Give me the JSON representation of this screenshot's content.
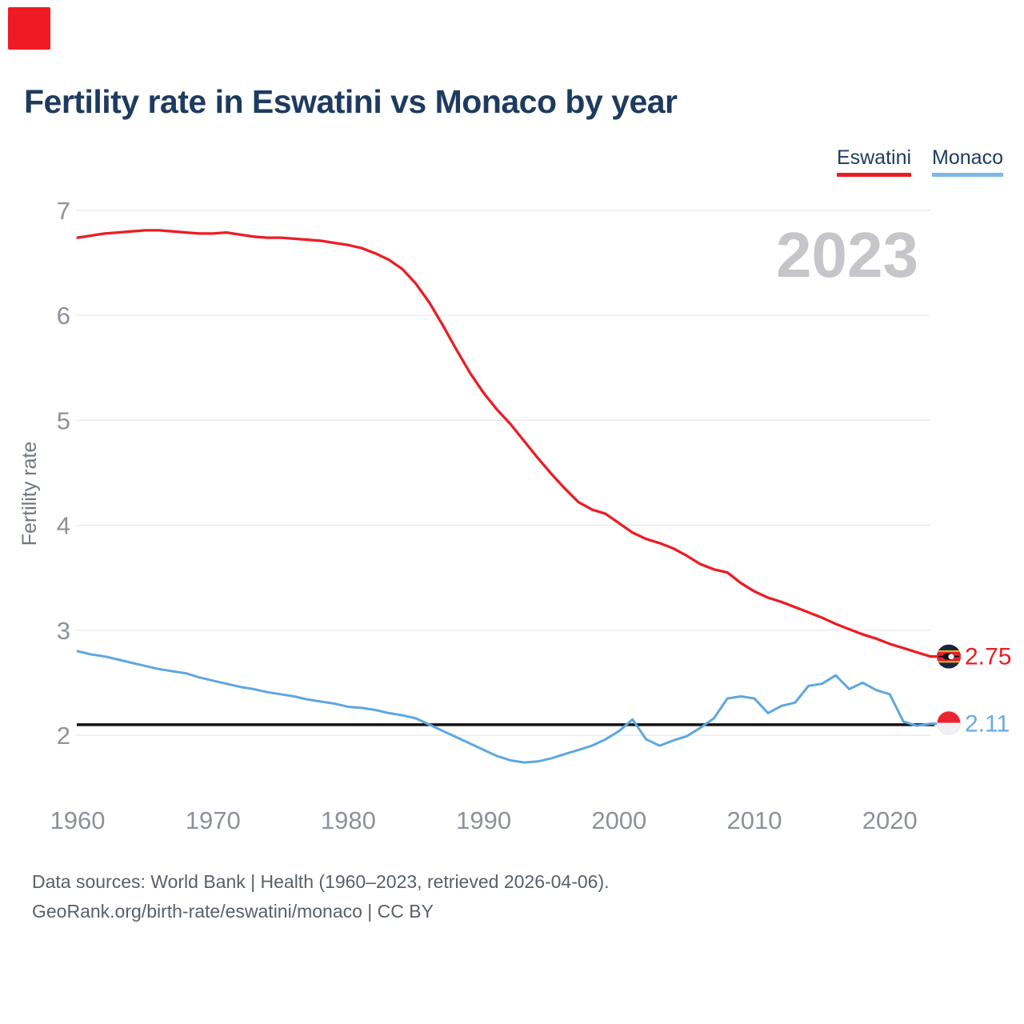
{
  "brand": {
    "logo_color": "#ee1b24"
  },
  "header": {
    "title": "Fertility rate in Eswatini vs Monaco by year"
  },
  "legend": {
    "items": [
      {
        "label": "Eswatini",
        "color": "#ed1c24"
      },
      {
        "label": "Monaco",
        "color": "#7cb9e8"
      }
    ]
  },
  "watermark": {
    "year": "2023"
  },
  "end_labels": {
    "eswatini": {
      "value": "2.75"
    },
    "monaco": {
      "value": "2.11"
    }
  },
  "footer": {
    "line1": "Data sources: World Bank | Health (1960–2023, retrieved 2026-04-06).",
    "line2": "GeoRank.org/birth-rate/eswatini/monaco | CC BY"
  },
  "chart_data": {
    "type": "line",
    "title": "Fertility rate in Eswatini vs Monaco by year",
    "xlabel": "",
    "ylabel": "Fertility rate",
    "xlim": [
      1960,
      2023
    ],
    "ylim": [
      1.6,
      7.1
    ],
    "grid": true,
    "legend_position": "top-right",
    "y_ticks": [
      7,
      6,
      5,
      4,
      3,
      2
    ],
    "x_ticks": [
      1960,
      1970,
      1980,
      1990,
      2000,
      2010,
      2020
    ],
    "reference_line": {
      "value": 2.1,
      "color": "#111111"
    },
    "colors": {
      "axis_text": "#8c919a",
      "axis_title": "#70777f",
      "grid": "#e8e8ea",
      "watermark": "#c6c6ca"
    },
    "years": [
      1960,
      1961,
      1962,
      1963,
      1964,
      1965,
      1966,
      1967,
      1968,
      1969,
      1970,
      1971,
      1972,
      1973,
      1974,
      1975,
      1976,
      1977,
      1978,
      1979,
      1980,
      1981,
      1982,
      1983,
      1984,
      1985,
      1986,
      1987,
      1988,
      1989,
      1990,
      1991,
      1992,
      1993,
      1994,
      1995,
      1996,
      1997,
      1998,
      1999,
      2000,
      2001,
      2002,
      2003,
      2004,
      2005,
      2006,
      2007,
      2008,
      2009,
      2010,
      2011,
      2012,
      2013,
      2014,
      2015,
      2016,
      2017,
      2018,
      2019,
      2020,
      2021,
      2022,
      2023
    ],
    "series": [
      {
        "name": "Eswatini",
        "color": "#ed1c24",
        "end_value": 2.75,
        "values": [
          6.74,
          6.76,
          6.78,
          6.79,
          6.8,
          6.81,
          6.81,
          6.8,
          6.79,
          6.78,
          6.78,
          6.79,
          6.77,
          6.75,
          6.74,
          6.74,
          6.73,
          6.72,
          6.71,
          6.69,
          6.67,
          6.64,
          6.59,
          6.53,
          6.44,
          6.3,
          6.12,
          5.9,
          5.67,
          5.45,
          5.26,
          5.1,
          4.96,
          4.8,
          4.64,
          4.49,
          4.35,
          4.22,
          4.15,
          4.11,
          4.02,
          3.93,
          3.87,
          3.83,
          3.78,
          3.71,
          3.63,
          3.58,
          3.55,
          3.45,
          3.37,
          3.31,
          3.27,
          3.22,
          3.17,
          3.12,
          3.06,
          3.01,
          2.96,
          2.92,
          2.87,
          2.83,
          2.79,
          2.75
        ]
      },
      {
        "name": "Monaco",
        "color": "#5ea7e0",
        "end_value": 2.11,
        "values": [
          2.8,
          2.77,
          2.75,
          2.72,
          2.69,
          2.66,
          2.63,
          2.61,
          2.59,
          2.55,
          2.52,
          2.49,
          2.46,
          2.44,
          2.41,
          2.39,
          2.37,
          2.34,
          2.32,
          2.3,
          2.27,
          2.26,
          2.24,
          2.21,
          2.19,
          2.16,
          2.1,
          2.04,
          1.98,
          1.92,
          1.86,
          1.8,
          1.76,
          1.74,
          1.75,
          1.78,
          1.82,
          1.86,
          1.9,
          1.96,
          2.04,
          2.15,
          1.96,
          1.9,
          1.95,
          1.99,
          2.07,
          2.16,
          2.35,
          2.37,
          2.35,
          2.21,
          2.28,
          2.31,
          2.47,
          2.49,
          2.57,
          2.44,
          2.5,
          2.43,
          2.39,
          2.13,
          2.09,
          2.11
        ]
      }
    ]
  }
}
